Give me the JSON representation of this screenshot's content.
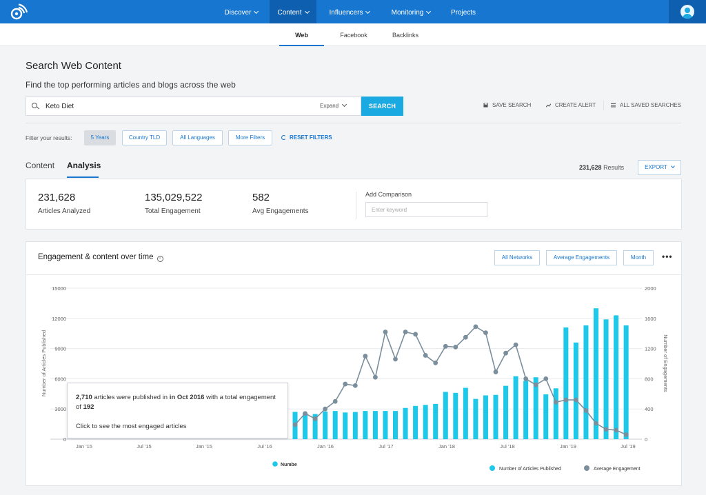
{
  "nav": {
    "items": [
      {
        "label": "Discover",
        "dropdown": true
      },
      {
        "label": "Content",
        "dropdown": true,
        "active": true
      },
      {
        "label": "Influencers",
        "dropdown": true
      },
      {
        "label": "Monitoring",
        "dropdown": true
      },
      {
        "label": "Projects",
        "dropdown": false
      }
    ]
  },
  "subnav": {
    "tabs": [
      "Web",
      "Facebook",
      "Backlinks"
    ],
    "active": "Web"
  },
  "page": {
    "title": "Search Web Content",
    "subtitle": "Find the top performing articles and blogs across the web"
  },
  "search": {
    "value": "Keto Diet",
    "expand_label": "Expand",
    "button_label": "SEARCH"
  },
  "actions": {
    "save_search": "SAVE SEARCH",
    "create_alert": "CREATE ALERT",
    "all_saved": "ALL SAVED SEARCHES"
  },
  "filters": {
    "label": "Filter your results:",
    "chips": [
      "5 Years",
      "Country TLD",
      "All Languages",
      "More Filters"
    ],
    "active_chip": "5 Years",
    "reset_label": "RESET FILTERS"
  },
  "view_tabs": {
    "tabs": [
      "Content",
      "Analysis"
    ],
    "active": "Analysis"
  },
  "results": {
    "count": "231,628",
    "label": "Results",
    "export_label": "EXPORT"
  },
  "stats": [
    {
      "value": "231,628",
      "label": "Articles Analyzed"
    },
    {
      "value": "135,029,522",
      "label": "Total Engagement"
    },
    {
      "value": "582",
      "label": "Avg Engagements"
    }
  ],
  "comparison": {
    "label": "Add Comparison",
    "placeholder": "Enter keyword"
  },
  "chart_card": {
    "title": "Engagement & content over time",
    "info_icon": "i",
    "buttons": [
      "All Networks",
      "Average Engagements",
      "Month"
    ],
    "more": "•••"
  },
  "tooltip": {
    "count": "2,710",
    "text_a": "articles were published in",
    "month": "in Oct 2016",
    "text_b": "with a total engagement of",
    "engagement": "192",
    "cta": "Click to see the most engaged articles"
  },
  "chart_data": {
    "type": "bar",
    "x_tick_labels": [
      "Jan '15",
      "Jul '15",
      "Jan '15",
      "Jul '16",
      "Jan '16",
      "Jul '17",
      "Jan '18",
      "Jul '18",
      "Jan '19",
      "Jul '19"
    ],
    "ylabel": "Number of Articles Published",
    "y2label": "Number of Engagements",
    "ylim": [
      0,
      15000
    ],
    "y_ticks": [
      0,
      3000,
      6000,
      9000,
      12000,
      15000
    ],
    "y2lim": [
      0,
      2000
    ],
    "y2_ticks": [
      0,
      400,
      800,
      1200,
      1600,
      2000
    ],
    "grid": true,
    "series": [
      {
        "name": "Number of Articles Published",
        "type": "bar",
        "color": "#1ec8e8",
        "x": [
          "2016-10",
          "2016-11",
          "2016-12",
          "2017-01",
          "2017-02",
          "2017-03",
          "2017-04",
          "2017-05",
          "2017-06",
          "2017-07",
          "2017-08",
          "2017-09",
          "2017-10",
          "2017-11",
          "2017-12",
          "2018-01",
          "2018-02",
          "2018-03",
          "2018-04",
          "2018-05",
          "2018-06",
          "2018-07",
          "2018-08",
          "2018-09",
          "2018-10",
          "2018-11",
          "2018-12",
          "2019-01",
          "2019-02",
          "2019-03",
          "2019-04",
          "2019-05",
          "2019-06",
          "2019-07"
        ],
        "values": [
          2710,
          2600,
          2500,
          2750,
          2800,
          2650,
          2700,
          2800,
          2800,
          2800,
          2800,
          3100,
          3300,
          3400,
          3500,
          4700,
          4600,
          5100,
          4000,
          4350,
          4400,
          5300,
          6250,
          5800,
          6150,
          4450,
          5050,
          11100,
          9600,
          11300,
          13000,
          11900,
          12300,
          11300
        ]
      },
      {
        "name": "Average Engagement",
        "type": "line",
        "color": "#7b8e9c",
        "x": [
          "2016-10",
          "2016-11",
          "2016-12",
          "2017-01",
          "2017-02",
          "2017-03",
          "2017-04",
          "2017-05",
          "2017-06",
          "2017-07",
          "2017-08",
          "2017-09",
          "2017-10",
          "2017-11",
          "2017-12",
          "2018-01",
          "2018-02",
          "2018-03",
          "2018-04",
          "2018-05",
          "2018-06",
          "2018-07",
          "2018-08",
          "2018-09",
          "2018-10",
          "2018-11",
          "2018-12",
          "2019-01",
          "2019-02",
          "2019-03",
          "2019-04",
          "2019-05",
          "2019-06",
          "2019-07"
        ],
        "values": [
          192,
          340,
          270,
          400,
          500,
          730,
          710,
          1100,
          820,
          1420,
          1060,
          1420,
          1390,
          1110,
          1010,
          1230,
          1220,
          1350,
          1490,
          1410,
          890,
          1140,
          1250,
          800,
          720,
          800,
          490,
          520,
          520,
          380,
          210,
          130,
          120,
          60
        ]
      }
    ],
    "legend": [
      {
        "label": "Number of Articles Published",
        "marker": "circle",
        "color": "#1ec8e8"
      },
      {
        "label": "Average Engagement",
        "marker": "circle",
        "color": "#7b8e9c"
      }
    ],
    "legend_placement": "bottom-right",
    "overlay_legend_fragment": "Numbe"
  }
}
